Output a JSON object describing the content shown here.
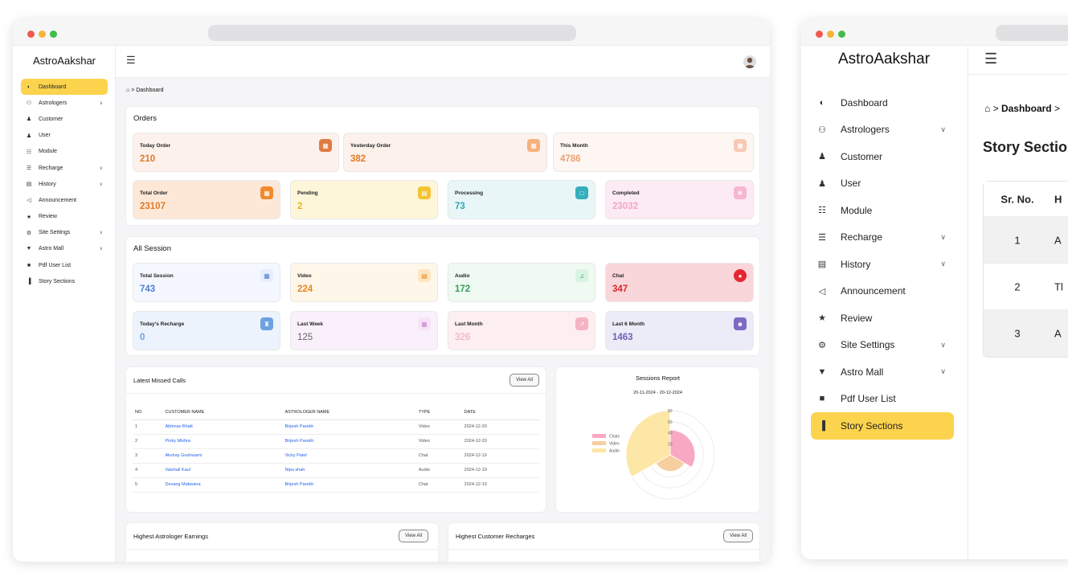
{
  "brand": "AstroAakshar",
  "colors": {
    "accent": "#fcd34d",
    "link": "#2563eb"
  },
  "dashboard": {
    "breadcrumb": {
      "home_icon": "home-icon",
      "separator": ">",
      "page": "Dashboard"
    },
    "sidebar": [
      {
        "label": "Dashboard",
        "icon": "dashboard-icon",
        "active": true,
        "chevron": false
      },
      {
        "label": "Astrologers",
        "icon": "users-icon",
        "chevron": true
      },
      {
        "label": "Customer",
        "icon": "user-icon",
        "chevron": false
      },
      {
        "label": "User",
        "icon": "user-icon",
        "chevron": false
      },
      {
        "label": "Module",
        "icon": "sitemap-icon",
        "chevron": false
      },
      {
        "label": "Recharge",
        "icon": "recharge-icon",
        "chevron": true
      },
      {
        "label": "History",
        "icon": "history-icon",
        "chevron": true
      },
      {
        "label": "Announcement",
        "icon": "megaphone-icon",
        "chevron": false
      },
      {
        "label": "Review",
        "icon": "star-icon",
        "chevron": false
      },
      {
        "label": "Site Settings",
        "icon": "settings-icon",
        "chevron": true
      },
      {
        "label": "Astro Mall",
        "icon": "shield-icon",
        "chevron": true
      },
      {
        "label": "Pdf User List",
        "icon": "file-icon",
        "chevron": false
      },
      {
        "label": "Story Sections",
        "icon": "bar-chart-icon",
        "chevron": false
      }
    ],
    "orders": {
      "title": "Orders",
      "row1": [
        {
          "label": "Today Order",
          "value": "210"
        },
        {
          "label": "Yesterday Order",
          "value": "382"
        },
        {
          "label": "This Month",
          "value": "4786"
        }
      ],
      "row2": [
        {
          "label": "Total Order",
          "value": "23107"
        },
        {
          "label": "Pending",
          "value": "2"
        },
        {
          "label": "Processing",
          "value": "73"
        },
        {
          "label": "Completed",
          "value": "23032"
        }
      ]
    },
    "sessions": {
      "title": "All Session",
      "row1": [
        {
          "label": "Total Session",
          "value": "743"
        },
        {
          "label": "Video",
          "value": "224"
        },
        {
          "label": "Audio",
          "value": "172"
        },
        {
          "label": "Chat",
          "value": "347"
        }
      ],
      "row2": [
        {
          "label": "Today's Recharge",
          "value": "0"
        },
        {
          "label": "Last Week",
          "value": "125"
        },
        {
          "label": "Last Month",
          "value": "326"
        },
        {
          "label": "Last 6 Month",
          "value": "1463"
        }
      ]
    },
    "missed_calls": {
      "title": "Latest Missed Calls",
      "view_all": "View All",
      "columns": [
        "NO",
        "CUSTOMER NAME",
        "ASTROLOGER NAME",
        "TYPE",
        "DATE"
      ],
      "rows": [
        [
          "1",
          "Abhinav Bhatt",
          "Brijesh Parekh",
          "Video",
          "2024-12-20"
        ],
        [
          "2",
          "Pinky Mishra",
          "Brijesh Parekh",
          "Video",
          "2024-12-20"
        ],
        [
          "3",
          "Akshay Goshwami",
          "Vicky Patel",
          "Chat",
          "2024-12-19"
        ],
        [
          "4",
          "Vaishali Kaul",
          "Nipa shah",
          "Audio",
          "2024-12-19"
        ],
        [
          "5",
          "Devang Makwana",
          "Brijesh Parekh",
          "Chat",
          "2024-12-19"
        ]
      ]
    },
    "sessions_report": {
      "title": "Sessions Report",
      "range": "20-11-2024 - 20-12-2024"
    },
    "chart_data": {
      "type": "polar-area",
      "title": "Sessions Report",
      "subtitle": "20-11-2024 - 20-12-2024",
      "categories": [
        "Chats",
        "Video",
        "Audio"
      ],
      "values": [
        45,
        30,
        80
      ],
      "colors": [
        "#f9a8c3",
        "#f7cf9f",
        "#fde7a6"
      ],
      "r_ticks": [
        20,
        40,
        60,
        80
      ],
      "r_max": 80,
      "legend": "left"
    },
    "earnings": {
      "title": "Highest Astrologer Earnings",
      "view_all": "View All"
    },
    "recharges": {
      "title": "Highest Customer Recharges",
      "view_all": "View All"
    }
  },
  "stories": {
    "breadcrumb": {
      "home_icon": "home-icon",
      "separator": ">",
      "page": "Dashboard",
      "next_separator": ">"
    },
    "page_title": "Story Sectio",
    "sidebar": [
      {
        "label": "Dashboard",
        "icon": "dashboard-icon",
        "chevron": false
      },
      {
        "label": "Astrologers",
        "icon": "users-icon",
        "chevron": true
      },
      {
        "label": "Customer",
        "icon": "user-icon",
        "chevron": false
      },
      {
        "label": "User",
        "icon": "user-icon",
        "chevron": false
      },
      {
        "label": "Module",
        "icon": "sitemap-icon",
        "chevron": false
      },
      {
        "label": "Recharge",
        "icon": "recharge-icon",
        "chevron": true
      },
      {
        "label": "History",
        "icon": "history-icon",
        "chevron": true
      },
      {
        "label": "Announcement",
        "icon": "megaphone-icon",
        "chevron": false
      },
      {
        "label": "Review",
        "icon": "star-icon",
        "chevron": false
      },
      {
        "label": "Site Settings",
        "icon": "settings-icon",
        "chevron": true
      },
      {
        "label": "Astro Mall",
        "icon": "shield-icon",
        "chevron": true
      },
      {
        "label": "Pdf User List",
        "icon": "file-icon",
        "chevron": false
      },
      {
        "label": "Story Sections",
        "icon": "bar-chart-icon",
        "active": true,
        "chevron": false
      }
    ],
    "table": {
      "columns": [
        "Sr. No.",
        "H"
      ],
      "rows": [
        [
          "1",
          "A"
        ],
        [
          "2",
          "Tl"
        ],
        [
          "3",
          "A"
        ]
      ]
    }
  }
}
